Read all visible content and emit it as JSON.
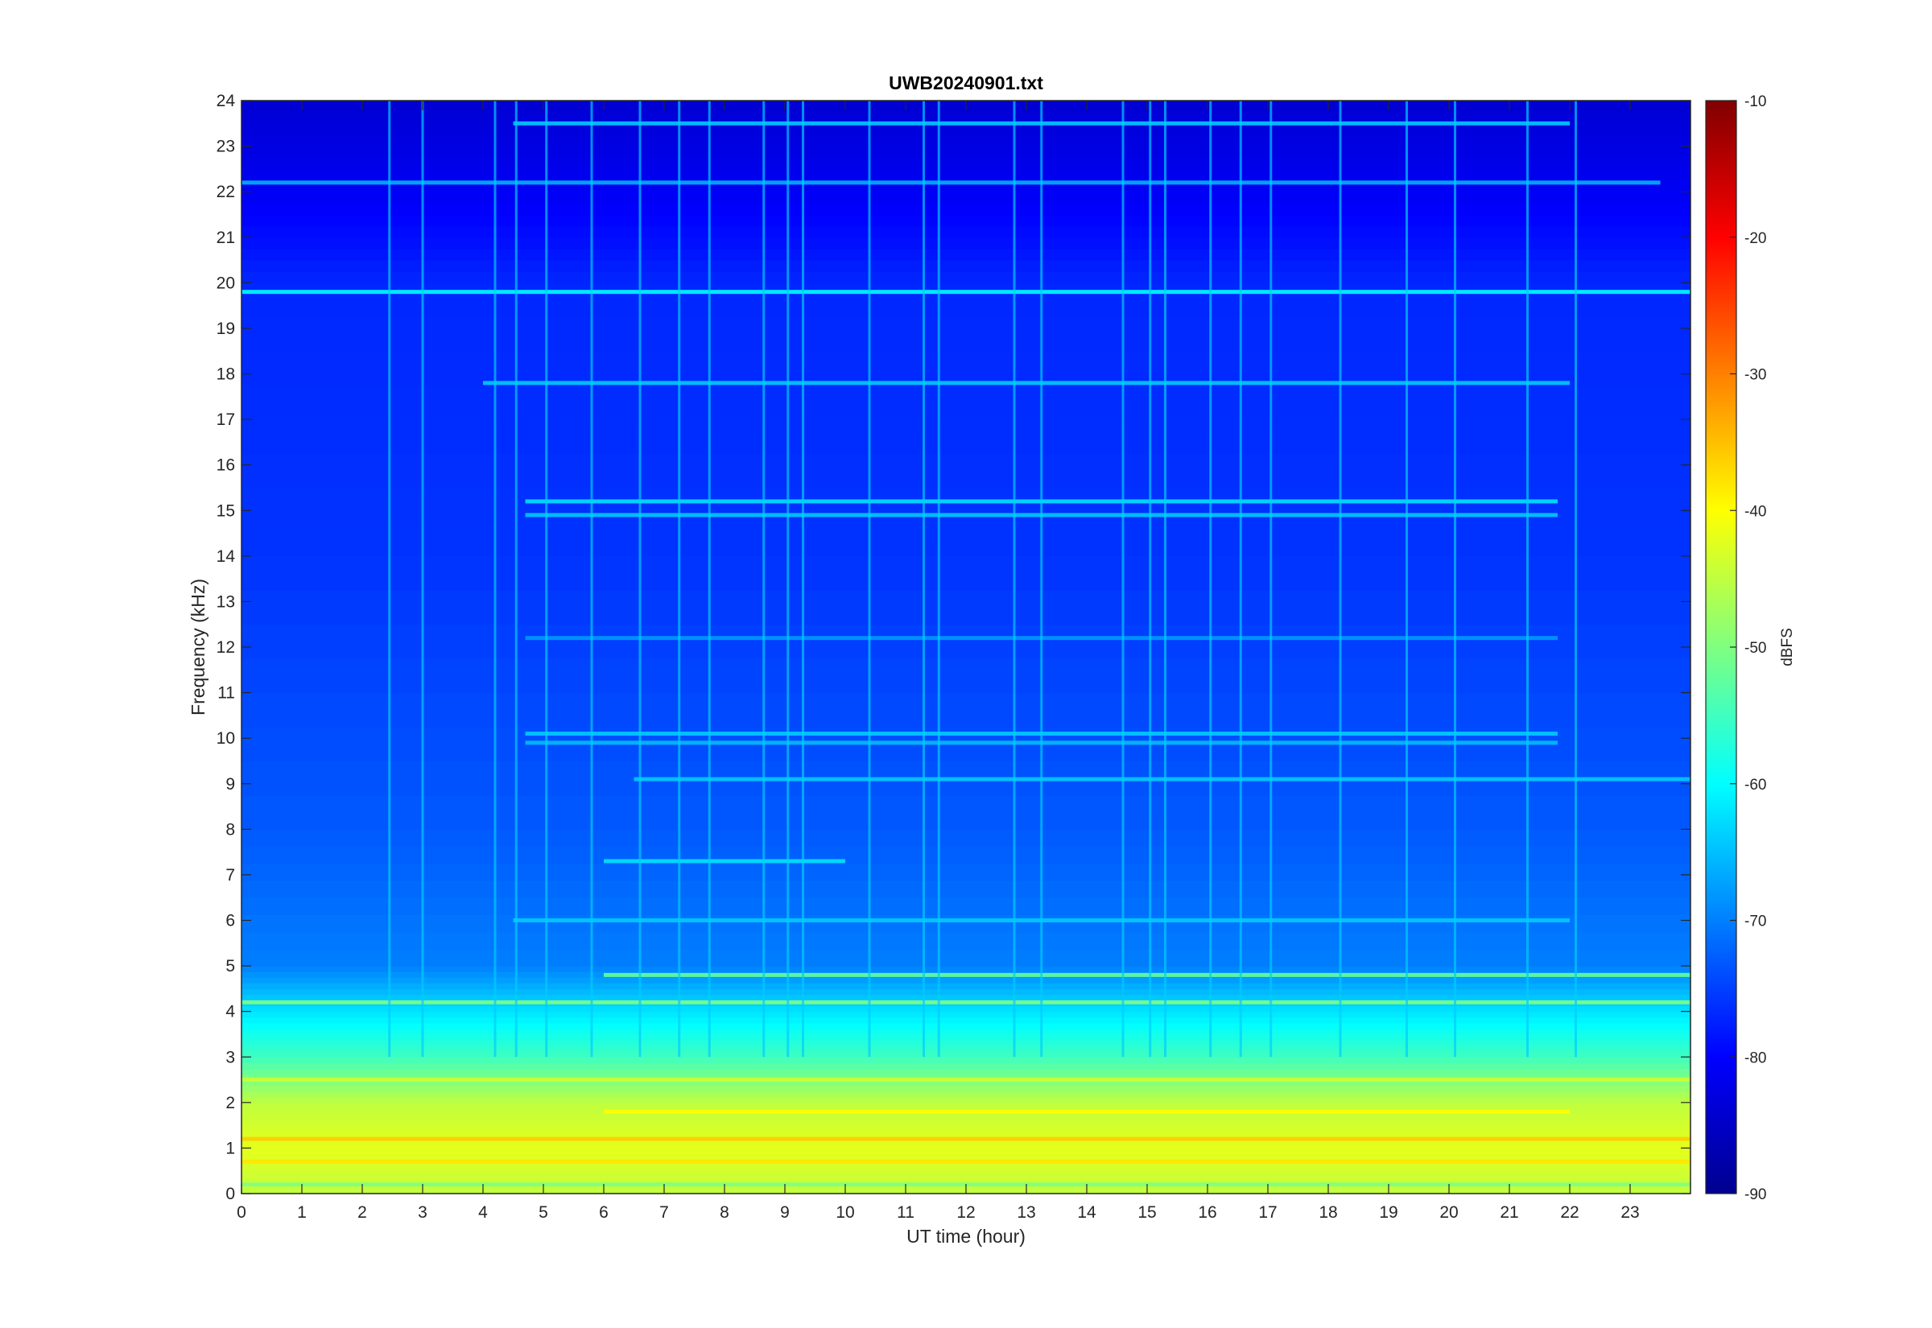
{
  "chart_data": {
    "type": "heatmap",
    "title": "UWB20240901.txt",
    "xlabel": "UT time (hour)",
    "ylabel": "Frequency (kHz)",
    "xlim": [
      0,
      24
    ],
    "ylim": [
      0,
      24
    ],
    "xticks": [
      "0",
      "1",
      "2",
      "3",
      "4",
      "5",
      "6",
      "7",
      "8",
      "9",
      "10",
      "11",
      "12",
      "13",
      "14",
      "15",
      "16",
      "17",
      "18",
      "19",
      "20",
      "21",
      "22",
      "23"
    ],
    "yticks": [
      "0",
      "1",
      "2",
      "3",
      "4",
      "5",
      "6",
      "7",
      "8",
      "9",
      "10",
      "11",
      "12",
      "13",
      "14",
      "15",
      "16",
      "17",
      "18",
      "19",
      "20",
      "21",
      "22",
      "23",
      "24"
    ],
    "colorbar": {
      "label": "dBFS",
      "range": [
        -90,
        -10
      ],
      "ticks": [
        "-90",
        "-80",
        "-70",
        "-60",
        "-50",
        "-40",
        "-30",
        "-20",
        "-10"
      ],
      "colormap": "jet"
    },
    "background_level_dbfs": [
      {
        "freq_khz": 0,
        "level": -45
      },
      {
        "freq_khz": 1,
        "level": -42
      },
      {
        "freq_khz": 2,
        "level": -45
      },
      {
        "freq_khz": 3,
        "level": -55
      },
      {
        "freq_khz": 4,
        "level": -62
      },
      {
        "freq_khz": 5,
        "level": -70
      },
      {
        "freq_khz": 8,
        "level": -73
      },
      {
        "freq_khz": 14,
        "level": -76
      },
      {
        "freq_khz": 20,
        "level": -77
      },
      {
        "freq_khz": 22,
        "level": -81
      },
      {
        "freq_khz": 24,
        "level": -84
      }
    ],
    "tone_lines": [
      {
        "freq_khz": 19.8,
        "level": -60,
        "t_start": 0,
        "t_end": 24
      },
      {
        "freq_khz": 22.2,
        "level": -66,
        "t_start": 0,
        "t_end": 23.5
      },
      {
        "freq_khz": 23.5,
        "level": -64,
        "t_start": 4.5,
        "t_end": 22
      },
      {
        "freq_khz": 17.8,
        "level": -64,
        "t_start": 4,
        "t_end": 22
      },
      {
        "freq_khz": 15.2,
        "level": -62,
        "t_start": 4.7,
        "t_end": 21.8
      },
      {
        "freq_khz": 14.9,
        "level": -64,
        "t_start": 4.7,
        "t_end": 21.8
      },
      {
        "freq_khz": 10.1,
        "level": -64,
        "t_start": 4.7,
        "t_end": 21.8
      },
      {
        "freq_khz": 9.9,
        "level": -65,
        "t_start": 4.7,
        "t_end": 21.8
      },
      {
        "freq_khz": 12.2,
        "level": -68,
        "t_start": 4.7,
        "t_end": 21.8
      },
      {
        "freq_khz": 9.1,
        "level": -64,
        "t_start": 6.5,
        "t_end": 24
      },
      {
        "freq_khz": 7.3,
        "level": -62,
        "t_start": 6,
        "t_end": 10
      },
      {
        "freq_khz": 6.0,
        "level": -64,
        "t_start": 4.5,
        "t_end": 22
      },
      {
        "freq_khz": 4.8,
        "level": -52,
        "t_start": 6,
        "t_end": 24
      },
      {
        "freq_khz": 4.2,
        "level": -50,
        "t_start": 0,
        "t_end": 24
      },
      {
        "freq_khz": 2.5,
        "level": -44,
        "t_start": 0,
        "t_end": 24
      },
      {
        "freq_khz": 1.8,
        "level": -40,
        "t_start": 6,
        "t_end": 22
      },
      {
        "freq_khz": 1.2,
        "level": -36,
        "t_start": 0,
        "t_end": 24
      },
      {
        "freq_khz": 0.7,
        "level": -38,
        "t_start": 0,
        "t_end": 24
      },
      {
        "freq_khz": 0.2,
        "level": -50,
        "t_start": 0,
        "t_end": 24
      }
    ],
    "vertical_spikes_hour": [
      2.45,
      3.0,
      4.2,
      4.55,
      5.05,
      5.8,
      6.6,
      7.25,
      7.75,
      8.65,
      9.05,
      9.3,
      10.4,
      11.3,
      11.55,
      12.8,
      13.25,
      14.6,
      15.05,
      15.3,
      16.05,
      16.55,
      17.05,
      18.2,
      19.3,
      20.1,
      21.3,
      22.1
    ]
  }
}
